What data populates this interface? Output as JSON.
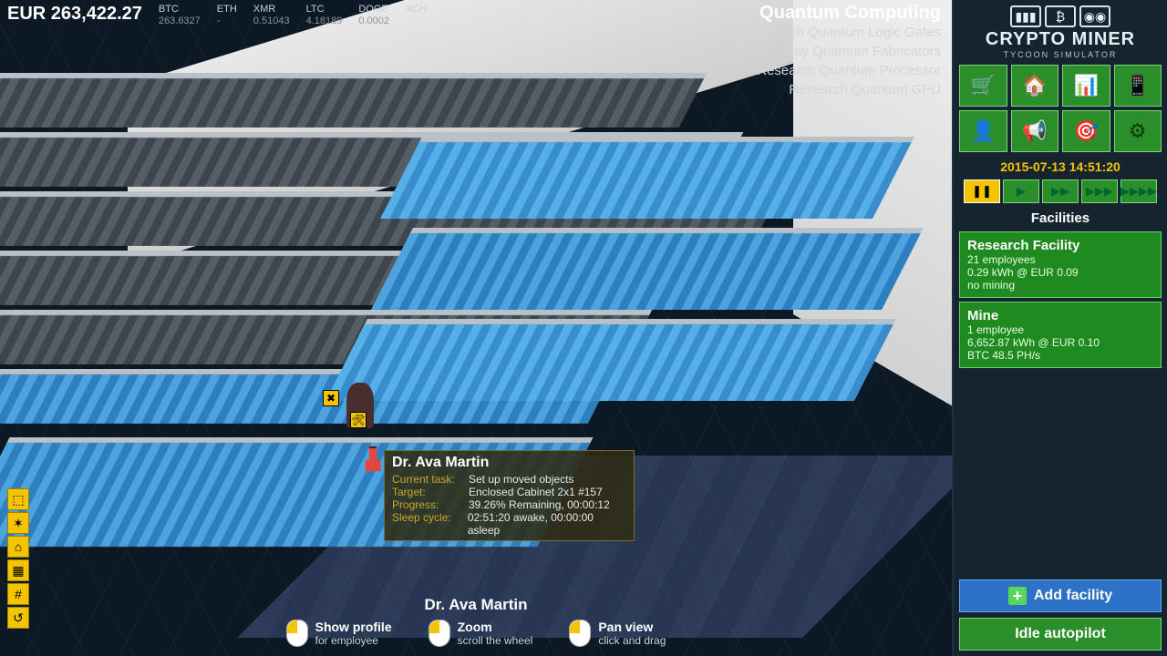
{
  "balance": {
    "currency": "EUR",
    "amount": "263,422.27"
  },
  "ticker": [
    {
      "sym": "BTC",
      "val": "263.6327"
    },
    {
      "sym": "ETH",
      "val": "-"
    },
    {
      "sym": "XMR",
      "val": "0.51043"
    },
    {
      "sym": "LTC",
      "val": "4.18189"
    },
    {
      "sym": "DOGE",
      "val": "0.0002"
    },
    {
      "sym": "XCH",
      "val": ""
    }
  ],
  "research": {
    "title": "Quantum Computing",
    "items": [
      "Research Quantum Logic Gates",
      "Buy Quantum Fabricators",
      "Research Quantum Processor",
      "Research Quantum GPU"
    ]
  },
  "tooltip": {
    "name": "Dr. Ava Martin",
    "rows": [
      {
        "k": "Current task:",
        "v": "Set up moved objects"
      },
      {
        "k": "Target:",
        "v": "Enclosed Cabinet 2x1 #157"
      },
      {
        "k": "Progress:",
        "v": "39.26%   Remaining, 00:00:12"
      },
      {
        "k": "Sleep cycle:",
        "v": "02:51:20 awake, 00:00:00 asleep"
      }
    ]
  },
  "help": {
    "who": "Dr. Ava Martin",
    "actions": [
      {
        "t1": "Show profile",
        "t2": "for employee"
      },
      {
        "t1": "Zoom",
        "t2": "scroll the wheel"
      },
      {
        "t1": "Pan view",
        "t2": "click and drag"
      }
    ]
  },
  "leftbar": [
    "⬚",
    "✶",
    "⌂",
    "▦",
    "#",
    "↺"
  ],
  "logo": {
    "title": "CRYPTO MINER",
    "sub": "TYCOON SIMULATOR"
  },
  "menu": [
    "🛒",
    "🏠",
    "📊",
    "📱",
    "👤",
    "📢",
    "🎯",
    "⚙"
  ],
  "clock": "2015-07-13 14:51:20",
  "speed_idx": 0,
  "facilities_title": "Facilities",
  "facilities": [
    {
      "name": "Research Facility",
      "l1": "21 employees",
      "l2": "0.29 kWh @ EUR 0.09",
      "l3": "no mining"
    },
    {
      "name": "Mine",
      "l1": "1 employee",
      "l2": "6,652.87 kWh @ EUR 0.10",
      "l3": "BTC 48.5 PH/s"
    }
  ],
  "add_facility": "Add facility",
  "idle_autopilot": "Idle autopilot",
  "colors": {
    "green": "#2a8f2a",
    "green_border": "#7dd67d",
    "blue": "#2d72c6",
    "yellow": "#f5c400",
    "sidebar": "#15242f",
    "bg": "#0a1420"
  }
}
